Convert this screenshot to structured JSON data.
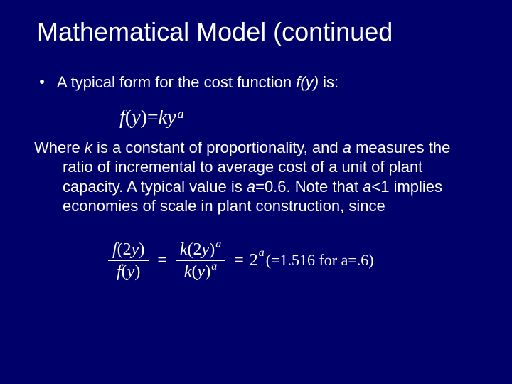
{
  "slide": {
    "title": "Mathematical Model (continued",
    "bullet1_prefix": "A typical form for the cost function ",
    "bullet1_fy": "f(y)",
    "bullet1_suffix": " is:",
    "eq1": {
      "lhs_f": "f",
      "lhs_open": "(",
      "lhs_var": "y",
      "lhs_close": ")",
      "eq": " = ",
      "rhs_k": "k",
      "rhs_y": "y",
      "rhs_exp": "a"
    },
    "body": {
      "p1": "Where ",
      "k": "k",
      "p2": " is a constant of proportionality, and ",
      "a1": "a",
      "p3": " measures the ratio of incremental to average cost of a unit of plant capacity. A typical value is ",
      "a2": "a",
      "p4": "=0.6. Note that ",
      "a3": "a",
      "p5": "<1 implies economies of scale in plant construction, since"
    },
    "eq2": {
      "frac1_num_f": "f",
      "frac1_num_arg": "(2",
      "frac1_num_y": "y",
      "frac1_num_close": ")",
      "frac1_den_f": "f",
      "frac1_den_arg": "(",
      "frac1_den_y": "y",
      "frac1_den_close": ")",
      "eq1": "=",
      "frac2_num_k": "k",
      "frac2_num_open": "(2",
      "frac2_num_y": "y",
      "frac2_num_close": ")",
      "frac2_num_exp": "a",
      "frac2_den_k": "k",
      "frac2_den_open": "(",
      "frac2_den_y": "y",
      "frac2_den_close": ")",
      "frac2_den_exp": "a",
      "eq2": "=",
      "two": "2",
      "two_exp": "a",
      "tail_open": "(=",
      "tail_val": "1.516",
      "tail_for": "  for a",
      "tail_eq": "=.6)"
    }
  },
  "style": {
    "background": "#00006b",
    "text_color": "#ffffff",
    "title_fontsize": 36,
    "body_fontsize": 22,
    "eq_fontsize": 24
  }
}
